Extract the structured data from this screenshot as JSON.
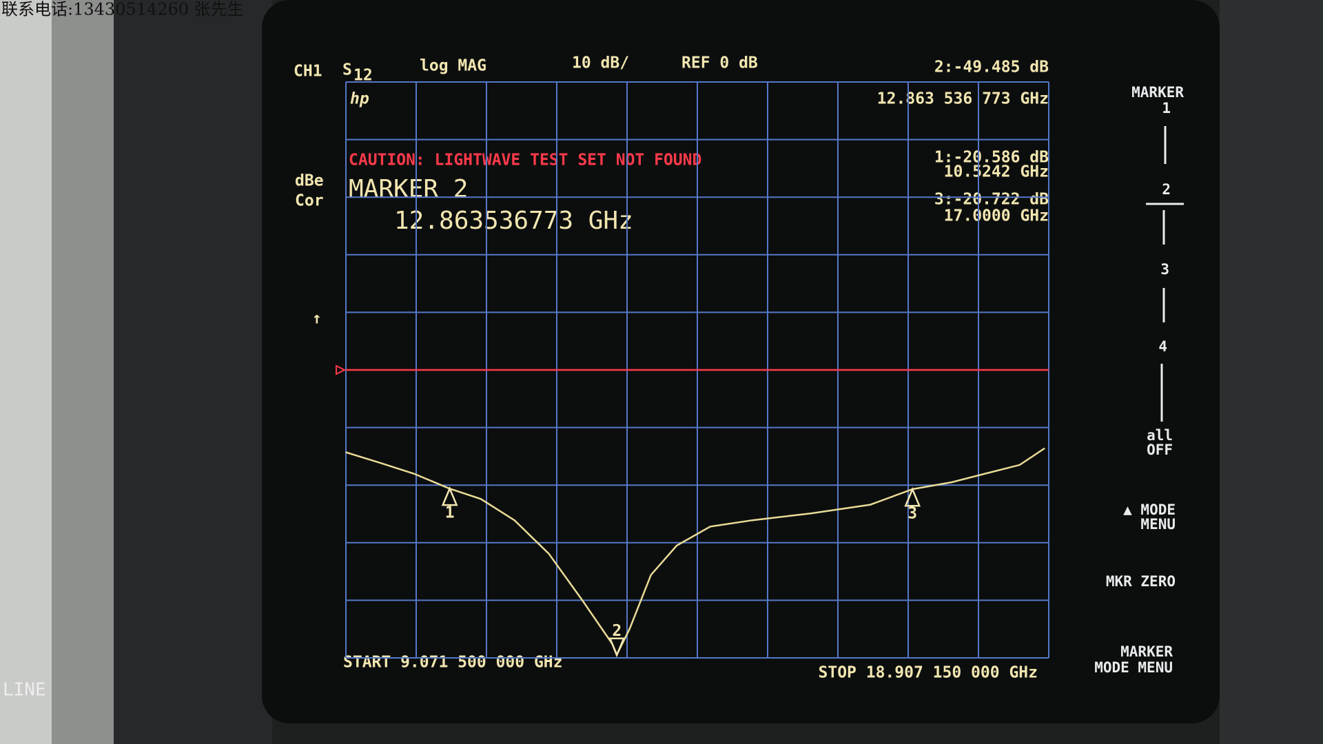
{
  "watermark": "联系电话:13430514260 张先生",
  "bezel_label": "LINE",
  "screen": {
    "channel": "CH1",
    "parameter": "S",
    "parameter_sub": "12",
    "format": "log MAG",
    "scale": "10 dB/",
    "reference": "REF 0 dB",
    "active_readout": "2:-49.485 dB",
    "active_frequency": "12.863 536 773 GHz",
    "logo": "hp",
    "status": [
      "dBe",
      "Cor"
    ],
    "caution": "CAUTION: LIGHTWAVE TEST SET NOT FOUND",
    "marker_title": "MARKER 2",
    "marker_entry": "12.863536773 GHz",
    "readouts": [
      {
        "value": "1:-20.586 dB",
        "frequency": "10.5242 GHz"
      },
      {
        "value": "3:-20.722 dB",
        "frequency": "17.0000 GHz"
      }
    ],
    "start": "START 9.071 500 000 GHz",
    "stop": "STOP 18.907 150 000 GHz",
    "scroll_arrow": "↑"
  },
  "softkeys": {
    "marker_title": "MARKER",
    "marker_numbers": [
      "1",
      "2",
      "3",
      "4"
    ],
    "all_off": [
      "all",
      "OFF"
    ],
    "mode_menu": [
      "▲ MODE",
      "MENU"
    ],
    "mkr_zero": "MKR ZERO",
    "marker_mode_menu": [
      "MARKER",
      "MODE MENU"
    ]
  },
  "chart_data": {
    "type": "line",
    "x": [
      9.07,
      9.54,
      10.02,
      10.52,
      10.96,
      11.43,
      11.91,
      12.38,
      12.8,
      12.86,
      13.04,
      13.34,
      13.7,
      14.17,
      14.76,
      15.58,
      16.41,
      17.0,
      17.55,
      18.02,
      18.5,
      18.85
    ],
    "values": [
      -14.3,
      -16.1,
      -18.0,
      -20.6,
      -22.4,
      -26.1,
      -31.9,
      -40.0,
      -47.6,
      -49.5,
      -45.0,
      -35.6,
      -30.5,
      -27.2,
      -26.1,
      -24.9,
      -23.4,
      -20.7,
      -19.5,
      -18.0,
      -16.5,
      -13.6
    ],
    "color": "#eadb96",
    "xlim": [
      9.0715,
      18.90715
    ],
    "xticks": [
      9.0715,
      10.0551,
      11.0386,
      12.0222,
      13.0057,
      13.9893,
      14.9729,
      15.9564,
      16.94,
      17.9236,
      18.90715
    ],
    "ylim": [
      -50,
      50
    ],
    "yticks": [
      -50,
      -40,
      -30,
      -20,
      -10,
      0,
      10,
      20,
      30,
      40,
      50
    ],
    "grid": true,
    "grid_color": "#5578c8",
    "reference_level": 0,
    "reference_color": "#ff3a4a",
    "markers": [
      {
        "label": "1",
        "x": 10.5242,
        "value": -20.586
      },
      {
        "label": "2",
        "x": 12.863536773,
        "value": -49.485
      },
      {
        "label": "3",
        "x": 17.0,
        "value": -20.722
      }
    ]
  }
}
